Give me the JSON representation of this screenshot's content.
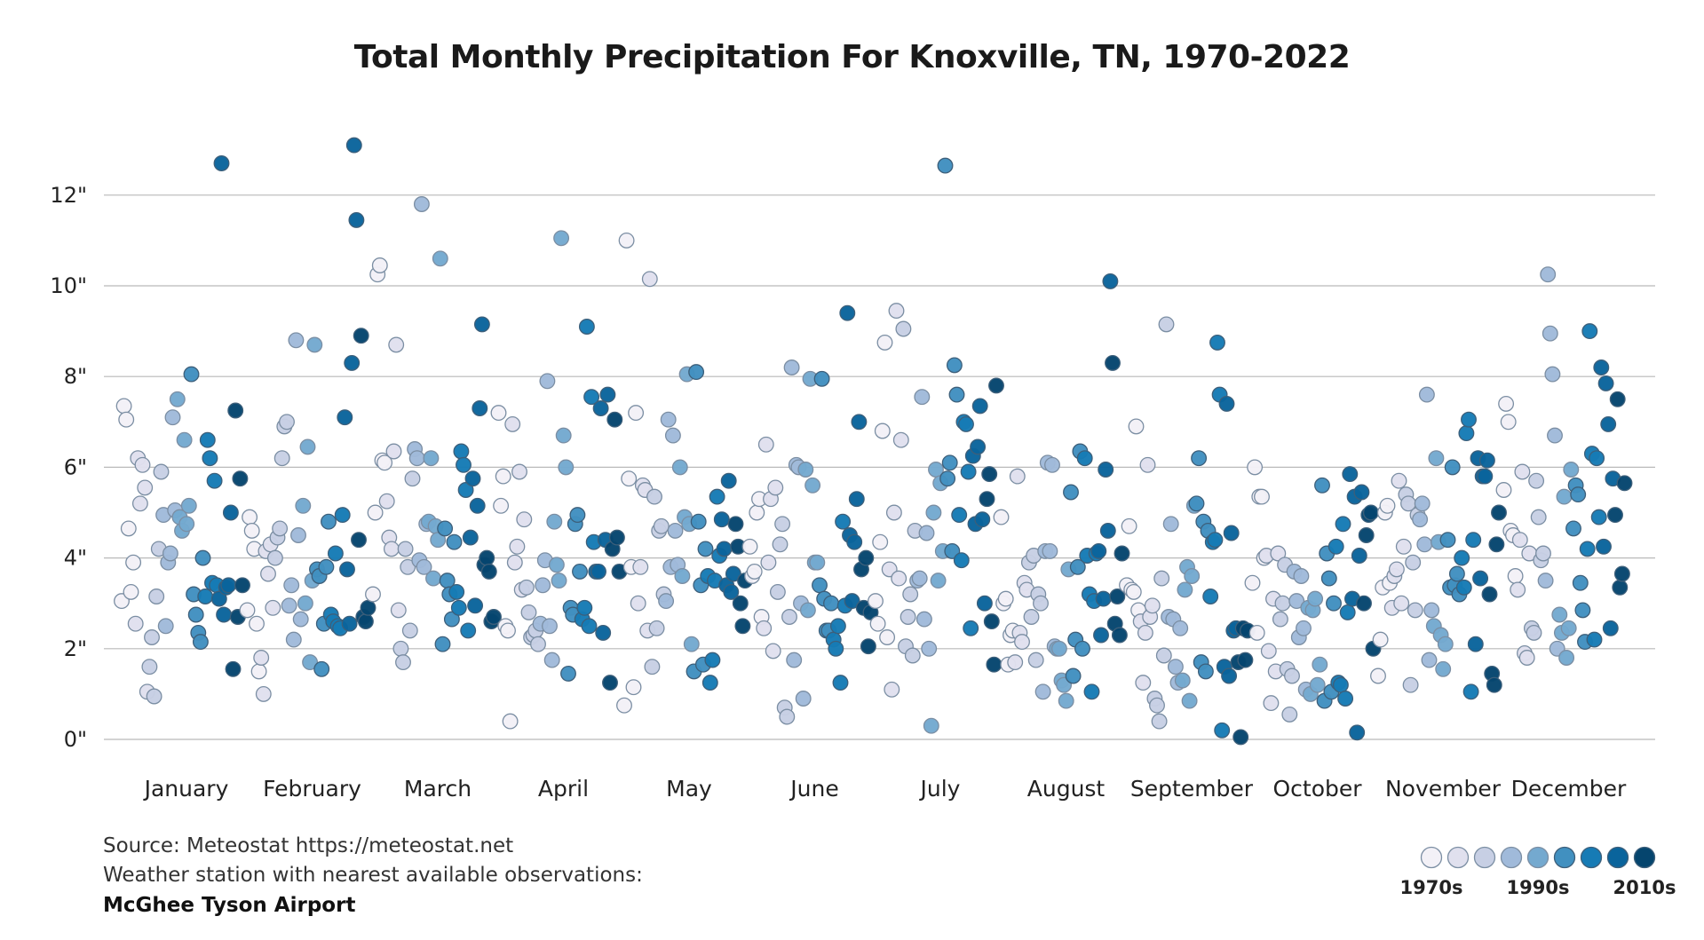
{
  "chart_data": {
    "type": "scatter",
    "title": "Total Monthly Precipitation For Knoxville, TN, 1970-2022",
    "xlabel": "",
    "ylabel": "",
    "ylim": [
      0,
      13
    ],
    "yticks": [
      "0\"",
      "2\"",
      "4\"",
      "6\"",
      "8\"",
      "10\"",
      "12\""
    ],
    "ytick_values": [
      0,
      2,
      4,
      6,
      8,
      10,
      12
    ],
    "grid": "horizontal",
    "categories": [
      "January",
      "February",
      "March",
      "April",
      "May",
      "June",
      "July",
      "August",
      "September",
      "October",
      "November",
      "December"
    ],
    "years": [
      1970,
      2022
    ],
    "note": "",
    "values_by_month": [
      [
        3.05,
        7.35,
        7.05,
        4.65,
        3.25,
        3.9,
        2.55,
        6.2,
        5.2,
        6.05,
        5.55,
        1.05,
        1.6,
        2.25,
        0.95,
        3.15,
        4.2,
        5.9,
        4.95,
        2.5,
        3.9,
        4.1,
        7.1,
        5.05,
        7.5,
        4.9,
        4.6,
        6.6,
        4.75,
        5.15,
        8.05,
        3.2,
        2.75,
        2.35,
        2.15,
        4.0,
        3.15,
        6.6,
        6.2,
        3.45,
        5.7,
        3.4,
        3.1,
        12.7,
        2.75,
        3.35,
        3.4,
        5.0,
        1.55,
        7.25,
        2.7,
        5.75,
        3.4
      ],
      [
        2.85,
        4.9,
        4.6,
        4.2,
        2.55,
        1.5,
        1.8,
        1.0,
        4.15,
        3.65,
        4.3,
        2.9,
        4.0,
        4.45,
        4.65,
        6.2,
        6.9,
        7.0,
        2.95,
        3.4,
        2.2,
        8.8,
        4.5,
        2.65,
        5.15,
        3.0,
        6.45,
        1.7,
        3.5,
        8.7,
        3.75,
        3.6,
        1.55,
        2.55,
        3.8,
        4.8,
        2.75,
        2.6,
        4.1,
        2.5,
        2.45,
        4.95,
        7.1,
        3.75,
        2.55,
        8.3,
        13.1,
        11.45,
        4.4,
        8.9,
        2.7,
        2.6,
        2.9
      ],
      [
        3.2,
        5.0,
        10.25,
        10.45,
        6.15,
        6.1,
        5.25,
        4.45,
        4.2,
        6.35,
        8.7,
        2.85,
        2.0,
        1.7,
        4.2,
        3.8,
        2.4,
        5.75,
        6.4,
        6.2,
        3.95,
        11.8,
        3.8,
        4.75,
        4.8,
        6.2,
        3.55,
        4.7,
        4.4,
        10.6,
        2.1,
        4.65,
        3.5,
        3.2,
        2.65,
        4.35,
        3.25,
        2.9,
        6.35,
        6.05,
        5.5,
        2.4,
        4.45,
        5.75,
        2.95,
        5.15,
        7.3,
        9.15,
        3.85,
        4.0,
        3.7,
        2.6,
        2.7
      ],
      [
        7.2,
        5.15,
        5.8,
        2.5,
        2.4,
        0.4,
        6.95,
        3.9,
        4.25,
        5.9,
        3.3,
        4.85,
        3.35,
        2.8,
        2.25,
        2.3,
        2.4,
        2.1,
        2.55,
        3.4,
        3.95,
        7.9,
        2.5,
        1.75,
        4.8,
        3.85,
        3.5,
        11.05,
        6.7,
        6.0,
        1.45,
        2.9,
        2.75,
        4.75,
        4.95,
        3.7,
        2.65,
        2.9,
        9.1,
        2.5,
        7.55,
        4.35,
        3.7,
        3.7,
        7.3,
        2.35,
        4.4,
        7.6,
        1.25,
        4.2,
        7.05,
        4.45,
        3.7
      ],
      [
        0.75,
        11.0,
        5.75,
        3.8,
        1.15,
        7.2,
        3.0,
        3.8,
        5.6,
        5.5,
        2.4,
        10.15,
        1.6,
        5.35,
        2.45,
        4.6,
        4.7,
        3.2,
        3.05,
        7.05,
        3.8,
        6.7,
        4.6,
        3.85,
        6.0,
        3.6,
        4.9,
        8.05,
        4.75,
        2.1,
        1.5,
        8.1,
        4.8,
        3.4,
        1.65,
        4.2,
        3.6,
        1.25,
        1.75,
        3.5,
        5.35,
        4.05,
        4.85,
        4.2,
        3.4,
        5.7,
        3.25,
        3.65,
        4.75,
        4.25,
        3.0,
        2.5,
        3.5
      ],
      [
        4.25,
        3.6,
        3.7,
        5.0,
        5.3,
        2.7,
        2.45,
        6.5,
        3.9,
        5.3,
        1.95,
        5.55,
        3.25,
        4.3,
        4.75,
        0.7,
        0.5,
        2.7,
        8.2,
        1.75,
        6.05,
        6.0,
        3.0,
        0.9,
        5.95,
        2.85,
        7.95,
        5.6,
        3.9,
        3.9,
        3.4,
        7.95,
        3.1,
        2.4,
        2.4,
        3.0,
        2.2,
        2.0,
        2.5,
        1.25,
        4.8,
        2.95,
        9.4,
        4.5,
        3.05,
        4.35,
        5.3,
        7.0,
        3.75,
        2.9,
        4.0,
        2.05,
        2.8
      ],
      [
        3.05,
        2.55,
        4.35,
        6.8,
        8.75,
        2.25,
        3.75,
        1.1,
        5.0,
        9.45,
        3.55,
        6.6,
        9.05,
        2.05,
        2.7,
        3.2,
        1.85,
        4.6,
        3.5,
        3.55,
        7.55,
        2.65,
        4.55,
        2.0,
        0.3,
        5.0,
        5.95,
        3.5,
        5.65,
        4.15,
        12.65,
        5.75,
        6.1,
        4.15,
        8.25,
        7.6,
        4.95,
        3.95,
        7.0,
        6.95,
        5.9,
        2.45,
        6.25,
        4.75,
        6.45,
        7.35,
        4.85,
        3.0,
        5.3,
        5.85,
        2.6,
        1.65,
        7.8
      ],
      [
        4.9,
        3.0,
        3.1,
        1.65,
        2.3,
        2.4,
        1.7,
        5.8,
        2.35,
        2.15,
        3.45,
        3.3,
        3.9,
        2.7,
        4.05,
        1.75,
        3.2,
        3.0,
        1.05,
        4.15,
        6.1,
        4.15,
        6.05,
        2.05,
        2.0,
        2.0,
        1.3,
        1.2,
        0.85,
        3.75,
        5.45,
        1.4,
        2.2,
        3.8,
        6.35,
        2.0,
        6.2,
        4.05,
        3.2,
        1.05,
        3.05,
        4.1,
        4.15,
        2.3,
        3.1,
        5.95,
        4.6,
        10.1,
        8.3,
        2.55,
        3.15,
        2.3,
        4.1
      ],
      [
        3.4,
        4.7,
        3.3,
        3.25,
        6.9,
        2.85,
        2.6,
        1.25,
        2.35,
        6.05,
        2.7,
        2.95,
        0.9,
        0.75,
        0.4,
        3.55,
        1.85,
        9.15,
        2.7,
        4.75,
        2.65,
        1.6,
        1.25,
        2.45,
        1.3,
        3.3,
        3.8,
        0.85,
        3.6,
        5.15,
        5.2,
        6.2,
        1.7,
        4.8,
        1.5,
        4.6,
        3.15,
        4.35,
        4.4,
        8.75,
        7.6,
        0.2,
        1.6,
        7.4,
        1.4,
        4.55,
        2.4,
        2.45,
        1.7,
        0.05,
        2.45,
        1.75,
        2.4
      ],
      [
        3.45,
        6.0,
        2.35,
        5.35,
        5.35,
        4.0,
        4.05,
        1.95,
        0.8,
        3.1,
        1.5,
        4.1,
        2.65,
        3.0,
        3.85,
        1.55,
        0.55,
        1.4,
        3.7,
        3.05,
        2.25,
        3.6,
        2.45,
        1.1,
        2.9,
        1.0,
        2.85,
        3.1,
        1.2,
        1.65,
        5.6,
        0.85,
        4.1,
        3.55,
        1.05,
        3.0,
        4.25,
        1.25,
        1.2,
        4.75,
        0.9,
        2.8,
        5.85,
        3.1,
        5.35,
        0.15,
        4.05,
        5.45,
        3.0,
        4.5,
        4.95,
        5.0,
        2.0
      ],
      [
        1.4,
        2.2,
        3.35,
        5.0,
        5.15,
        3.45,
        2.9,
        3.6,
        3.75,
        5.7,
        3.0,
        4.25,
        5.4,
        5.2,
        1.2,
        3.9,
        2.85,
        4.95,
        4.85,
        5.2,
        4.3,
        7.6,
        1.75,
        2.85,
        2.5,
        6.2,
        4.35,
        2.3,
        1.55,
        2.1,
        4.4,
        3.35,
        6.0,
        3.4,
        3.65,
        3.2,
        4.0,
        3.35,
        6.75,
        7.05,
        1.05,
        4.4,
        2.1,
        6.2,
        3.55,
        5.8,
        5.8,
        6.15,
        3.2,
        1.45,
        1.2,
        4.3,
        5.0
      ],
      [
        5.5,
        7.4,
        7.0,
        4.6,
        4.5,
        3.6,
        3.3,
        4.4,
        5.9,
        1.9,
        1.8,
        4.1,
        2.45,
        2.35,
        5.7,
        4.9,
        3.95,
        4.1,
        3.5,
        10.25,
        8.95,
        8.05,
        6.7,
        2.0,
        2.75,
        2.35,
        5.35,
        1.8,
        2.45,
        5.95,
        4.65,
        5.6,
        5.4,
        3.45,
        2.85,
        2.15,
        4.2,
        9.0,
        6.3,
        2.2,
        6.2,
        4.9,
        8.2,
        4.25,
        7.85,
        6.95,
        2.45,
        5.75,
        4.95,
        7.5,
        3.35,
        3.65,
        5.65
      ]
    ],
    "color_scale": [
      "#f3f1f7",
      "#e0e0ee",
      "#c7cfe4",
      "#a0bada",
      "#74a9cf",
      "#4190c0",
      "#167bb5",
      "#0a649c",
      "#05456e"
    ],
    "legend": {
      "labels": [
        "1970s",
        "1990s",
        "2010s"
      ],
      "placement": "bottom-right"
    }
  },
  "source": {
    "line1": "Source: Meteostat https://meteostat.net",
    "line2": "Weather station with nearest available observations:",
    "line3": "McGhee Tyson Airport"
  }
}
